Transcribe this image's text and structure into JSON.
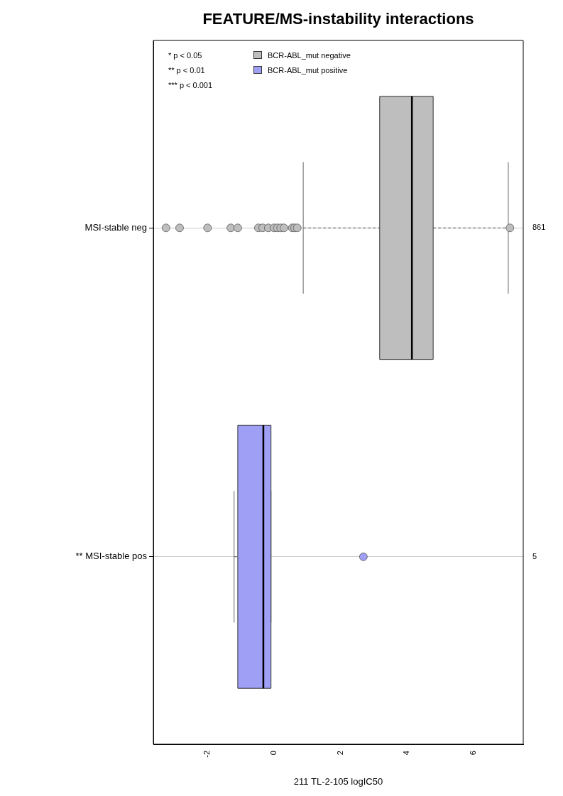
{
  "chart_data": {
    "type": "box",
    "title": "FEATURE/MS-instability interactions",
    "xlabel": "211 TL-2-105 logIC50",
    "orientation": "horizontal",
    "categories": [
      "MSI-stable neg",
      "** MSI-stable pos"
    ],
    "xlim": [
      -3.63,
      7.5
    ],
    "xticks": [
      -2,
      0,
      2,
      4,
      6
    ],
    "grid": "y",
    "legend": "top left",
    "series": [
      {
        "name": "BCR-ABL_mut negative",
        "color": "#bebebe",
        "boxes": [
          {
            "low": 0.88,
            "q1": 3.18,
            "median": 4.15,
            "q3": 4.79,
            "high": 7.05,
            "outliers": [
              -3.25,
              -2.84,
              -2.0,
              -1.3,
              -1.09,
              -0.47,
              -0.34,
              -0.17,
              0.0,
              0.1,
              0.2,
              0.3,
              0.55,
              0.62,
              0.7,
              7.1
            ]
          },
          null
        ]
      },
      {
        "name": "BCR-ABL_mut positive",
        "color": "#9f9ff5",
        "boxes": [
          null,
          {
            "low": -1.2,
            "q1": -1.09,
            "median": -0.32,
            "q3": -0.09,
            "high": -0.09,
            "outliers": [
              2.69
            ]
          }
        ]
      }
    ],
    "annotations": [
      "* p < 0.05",
      "** p < 0.01",
      "*** p < 0.001",
      "861",
      "5"
    ]
  }
}
